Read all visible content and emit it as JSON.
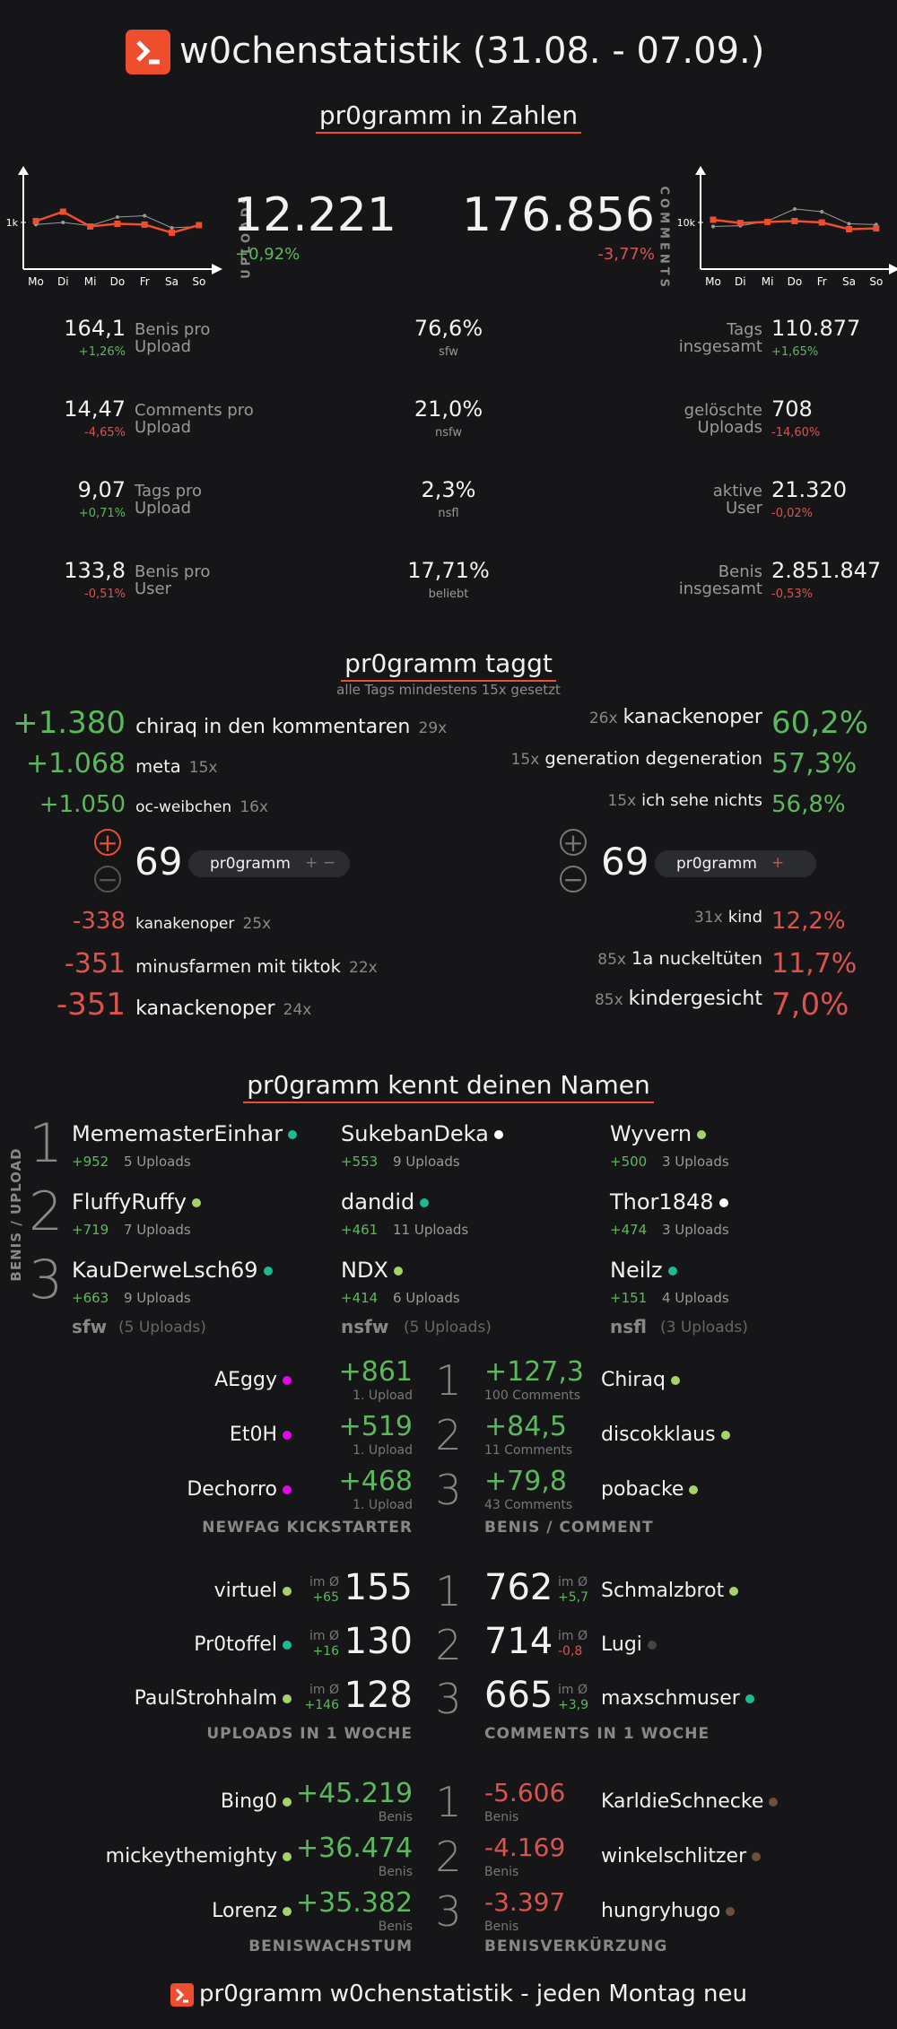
{
  "header": {
    "title": "w0chenstatistik (31.08. - 07.09.)"
  },
  "numbers": {
    "section_title": "pr0gramm in Zahlen",
    "uploads": {
      "label": "UPLOADS",
      "value": "12.221",
      "change": "+0,92%"
    },
    "comments": {
      "label": "COMMENTS",
      "value": "176.856",
      "change": "-3,77%"
    },
    "chart_uploads": {
      "ytick": "1k",
      "days": [
        "Mo",
        "Di",
        "Mi",
        "Do",
        "Fr",
        "Sa",
        "So"
      ],
      "red": [
        0.55,
        0.9,
        0.35,
        0.45,
        0.42,
        0.12,
        0.4
      ],
      "grey": [
        0.42,
        0.5,
        0.38,
        0.7,
        0.75,
        0.3,
        0.35
      ]
    },
    "chart_comments": {
      "ytick": "10k",
      "days": [
        "Mo",
        "Di",
        "Mi",
        "Do",
        "Fr",
        "Sa",
        "So"
      ],
      "red": [
        0.6,
        0.48,
        0.52,
        0.55,
        0.5,
        0.25,
        0.28
      ],
      "grey": [
        0.35,
        0.38,
        0.55,
        1.0,
        0.9,
        0.45,
        0.42
      ]
    },
    "left": [
      {
        "value": "164,1",
        "change": "+1,26%",
        "label1": "Benis pro",
        "label2": "Upload",
        "up": true
      },
      {
        "value": "14,47",
        "change": "-4,65%",
        "label1": "Comments pro",
        "label2": "Upload",
        "up": false
      },
      {
        "value": "9,07",
        "change": "+0,71%",
        "label1": "Tags pro",
        "label2": "Upload",
        "up": true
      },
      {
        "value": "133,8",
        "change": "-0,51%",
        "label1": "Benis pro",
        "label2": "User",
        "up": false
      }
    ],
    "mid": [
      {
        "value": "76,6%",
        "label": "sfw"
      },
      {
        "value": "21,0%",
        "label": "nsfw"
      },
      {
        "value": "2,3%",
        "label": "nsfl"
      },
      {
        "value": "17,71%",
        "label": "beliebt"
      }
    ],
    "right": [
      {
        "label1": "Tags",
        "label2": "insgesamt",
        "value": "110.877",
        "change": "+1,65%",
        "up": true
      },
      {
        "label1": "gelöschte",
        "label2": "Uploads",
        "value": "708",
        "change": "-14,60%",
        "up": false
      },
      {
        "label1": "aktive",
        "label2": "User",
        "value": "21.320",
        "change": "-0,02%",
        "up": false
      },
      {
        "label1": "Benis",
        "label2": "insgesamt",
        "value": "2.851.847",
        "change": "-0,53%",
        "up": false
      }
    ]
  },
  "tags": {
    "section_title": "pr0gramm taggt",
    "subtitle": "alle Tags mindestens 15x gesetzt",
    "top_left": [
      {
        "score": "+1.380",
        "tag": "chiraq in den kommentaren",
        "count": "29x"
      },
      {
        "score": "+1.068",
        "tag": "meta",
        "count": "15x"
      },
      {
        "score": "+1.050",
        "tag": "oc-weibchen",
        "count": "16x"
      }
    ],
    "top_right": [
      {
        "count": "26x",
        "tag": "kanackenoper",
        "pct": "60,2%"
      },
      {
        "count": "15x",
        "tag": "generation degeneration",
        "pct": "57,3%"
      },
      {
        "count": "15x",
        "tag": "ich sehe nichts",
        "pct": "56,8%"
      }
    ],
    "widget_left": {
      "value": "69",
      "pill": "pr0gramm",
      "plus": "+",
      "minus": "−"
    },
    "widget_right": {
      "value": "69",
      "pill": "pr0gramm",
      "plus": "+"
    },
    "bottom_left": [
      {
        "score": "-338",
        "tag": "kanakenoper",
        "count": "25x"
      },
      {
        "score": "-351",
        "tag": "minusfarmen mit tiktok",
        "count": "22x"
      },
      {
        "score": "-351",
        "tag": "kanackenoper",
        "count": "24x"
      }
    ],
    "bottom_right": [
      {
        "count": "31x",
        "tag": "kind",
        "pct": "12,2%"
      },
      {
        "count": "85x",
        "tag": "1a nuckeltüten",
        "pct": "11,7%"
      },
      {
        "count": "85x",
        "tag": "kindergesicht",
        "pct": "7,0%"
      }
    ]
  },
  "names": {
    "section_title": "pr0gramm kennt deinen Namen",
    "side_label": "BENIS / UPLOAD",
    "ranks": [
      "1",
      "2",
      "3"
    ],
    "columns": [
      {
        "footer": "sfw",
        "footer_sub": "(5 Uploads)",
        "users": [
          {
            "name": "MememasterEinhar",
            "benis": "+952",
            "uploads": "5 Uploads",
            "color": "#1db992"
          },
          {
            "name": "FluffyRuffy",
            "benis": "+719",
            "uploads": "7 Uploads",
            "color": "#a7d169"
          },
          {
            "name": "KauDerweLsch69",
            "benis": "+663",
            "uploads": "9 Uploads",
            "color": "#1db992"
          }
        ]
      },
      {
        "footer": "nsfw",
        "footer_sub": "(5 Uploads)",
        "users": [
          {
            "name": "SukebanDeka",
            "benis": "+553",
            "uploads": "9 Uploads",
            "color": "#ffffff"
          },
          {
            "name": "dandid",
            "benis": "+461",
            "uploads": "11 Uploads",
            "color": "#1db992"
          },
          {
            "name": "NDX",
            "benis": "+414",
            "uploads": "6 Uploads",
            "color": "#a7d169"
          }
        ]
      },
      {
        "footer": "nsfl",
        "footer_sub": "(3 Uploads)",
        "users": [
          {
            "name": "Wyvern",
            "benis": "+500",
            "uploads": "3 Uploads",
            "color": "#a7d169"
          },
          {
            "name": "Thor1848",
            "benis": "+474",
            "uploads": "3 Uploads",
            "color": "#ffffff"
          },
          {
            "name": "Neilz",
            "benis": "+151",
            "uploads": "4 Uploads",
            "color": "#1db992"
          }
        ]
      }
    ]
  },
  "newfag": {
    "label": "NEWFAG KICKSTARTER",
    "rows": [
      {
        "name": "AEggy",
        "value": "+861",
        "sub": "1. Upload",
        "color": "#e108e9"
      },
      {
        "name": "Et0H",
        "value": "+519",
        "sub": "1. Upload",
        "color": "#e108e9"
      },
      {
        "name": "Dechorro",
        "value": "+468",
        "sub": "1. Upload",
        "color": "#e108e9"
      }
    ]
  },
  "benis_comment": {
    "label": "BENIS / COMMENT",
    "rows": [
      {
        "name": "Chiraq",
        "value": "+127,3",
        "sub": "100 Comments",
        "color": "#a7d169"
      },
      {
        "name": "discokklaus",
        "value": "+84,5",
        "sub": "11 Comments",
        "color": "#a7d169"
      },
      {
        "name": "pobacke",
        "value": "+79,8",
        "sub": "43 Comments",
        "color": "#a7d169"
      }
    ]
  },
  "uploads_week": {
    "label": "UPLOADS IN 1 WOCHE",
    "avg_label": "im Ø",
    "rows": [
      {
        "name": "virtuel",
        "value": "155",
        "avg": "+65",
        "up": true,
        "color": "#a7d169"
      },
      {
        "name": "Pr0toffel",
        "value": "130",
        "avg": "+16",
        "up": true,
        "color": "#1db992"
      },
      {
        "name": "PaulStrohhalm",
        "value": "128",
        "avg": "+146",
        "up": true,
        "color": "#a7d169"
      }
    ]
  },
  "comments_week": {
    "label": "COMMENTS IN 1 WOCHE",
    "avg_label": "im Ø",
    "rows": [
      {
        "name": "Schmalzbrot",
        "value": "762",
        "avg": "+5,7",
        "up": true,
        "color": "#a7d169"
      },
      {
        "name": "Lugi",
        "value": "714",
        "avg": "-0,8",
        "up": false,
        "color": "#444444"
      },
      {
        "name": "maxschmuser",
        "value": "665",
        "avg": "+3,9",
        "up": true,
        "color": "#1db992"
      }
    ]
  },
  "growth": {
    "label": "BENISWACHSTUM",
    "rows": [
      {
        "name": "Bing0",
        "value": "+45.219",
        "sub": "Benis",
        "color": "#a7d169"
      },
      {
        "name": "mickeythemighty",
        "value": "+36.474",
        "sub": "Benis",
        "color": "#a7d169"
      },
      {
        "name": "Lorenz",
        "value": "+35.382",
        "sub": "Benis",
        "color": "#a7d169"
      }
    ]
  },
  "shrink": {
    "label": "BENISVERKÜRZUNG",
    "rows": [
      {
        "name": "KarldieSchnecke",
        "value": "-5.606",
        "sub": "Benis",
        "color": "#6b4e3d"
      },
      {
        "name": "winkelschlitzer",
        "value": "-4.169",
        "sub": "Benis",
        "color": "#6b4e3d"
      },
      {
        "name": "hungryhugo",
        "value": "-3.397",
        "sub": "Benis",
        "color": "#6b4e3d"
      }
    ]
  },
  "footer": {
    "text": "pr0gramm w0chenstatistik - jeden Montag neu"
  },
  "colors": {
    "accent": "#ee4d2e",
    "positive": "#5cb85c",
    "negative": "#d9534f"
  }
}
